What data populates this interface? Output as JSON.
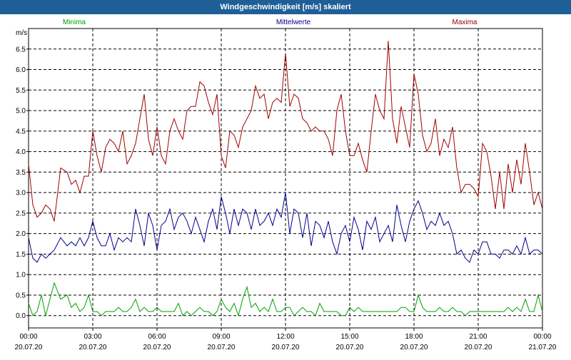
{
  "window": {
    "title": "Windgeschwindigkeit [m/s] skaliert"
  },
  "chart_data": {
    "type": "line",
    "title": "Windgeschwindigkeit [m/s] skaliert",
    "ylabel": "m/s",
    "xlabel": "",
    "ylim": [
      -0.3,
      7.0
    ],
    "xlim": [
      "2020-07-20 00:00",
      "2020-07-21 00:00"
    ],
    "grid": true,
    "yticks": [
      "0.0",
      "0.5",
      "1.0",
      "1.5",
      "2.0",
      "2.5",
      "3.0",
      "3.5",
      "4.0",
      "4.5",
      "5.0",
      "5.5",
      "6.0",
      "6.5"
    ],
    "ytick_values": [
      0,
      0.5,
      1.0,
      1.5,
      2.0,
      2.5,
      3.0,
      3.5,
      4.0,
      4.5,
      5.0,
      5.5,
      6.0,
      6.5
    ],
    "xticks": [
      {
        "time": "00:00",
        "date": "20.07.20",
        "hour": 0
      },
      {
        "time": "03:00",
        "date": "20.07.20",
        "hour": 3
      },
      {
        "time": "06:00",
        "date": "20.07.20",
        "hour": 6
      },
      {
        "time": "09:00",
        "date": "20.07.20",
        "hour": 9
      },
      {
        "time": "12:00",
        "date": "20.07.20",
        "hour": 12
      },
      {
        "time": "15:00",
        "date": "20.07.20",
        "hour": 15
      },
      {
        "time": "18:00",
        "date": "20.07.20",
        "hour": 18
      },
      {
        "time": "21:00",
        "date": "20.07.20",
        "hour": 21
      },
      {
        "time": "00:00",
        "date": "21.07.20",
        "hour": 24
      }
    ],
    "series": [
      {
        "name": "Maxima",
        "color": "#a00000",
        "hours": [
          0.0,
          0.2,
          0.4,
          0.6,
          0.8,
          1.0,
          1.2,
          1.5,
          1.8,
          2.0,
          2.2,
          2.4,
          2.6,
          2.8,
          3.0,
          3.2,
          3.4,
          3.6,
          3.8,
          4.0,
          4.2,
          4.4,
          4.6,
          4.8,
          5.0,
          5.2,
          5.4,
          5.6,
          5.8,
          6.0,
          6.2,
          6.4,
          6.6,
          6.8,
          7.0,
          7.2,
          7.4,
          7.6,
          7.8,
          8.0,
          8.2,
          8.4,
          8.6,
          8.8,
          9.0,
          9.2,
          9.4,
          9.6,
          9.8,
          10.0,
          10.2,
          10.4,
          10.6,
          10.8,
          11.0,
          11.2,
          11.4,
          11.6,
          11.8,
          12.0,
          12.2,
          12.4,
          12.6,
          12.8,
          13.0,
          13.2,
          13.4,
          13.6,
          13.8,
          14.0,
          14.2,
          14.4,
          14.6,
          14.8,
          15.0,
          15.2,
          15.4,
          15.6,
          15.8,
          16.0,
          16.2,
          16.4,
          16.6,
          16.8,
          17.0,
          17.2,
          17.4,
          17.6,
          17.8,
          18.0,
          18.2,
          18.4,
          18.6,
          18.8,
          19.0,
          19.2,
          19.4,
          19.6,
          19.8,
          20.0,
          20.2,
          20.4,
          20.6,
          20.8,
          21.0,
          21.2,
          21.4,
          21.6,
          21.8,
          22.0,
          22.2,
          22.4,
          22.6,
          22.8,
          23.0,
          23.2,
          23.4,
          23.6,
          23.8,
          24.0
        ],
        "values": [
          3.7,
          2.7,
          2.4,
          2.5,
          2.7,
          2.6,
          2.3,
          3.6,
          3.5,
          3.2,
          3.3,
          3.0,
          3.4,
          3.4,
          4.5,
          3.9,
          3.5,
          4.1,
          4.3,
          4.2,
          4.0,
          4.5,
          3.7,
          3.9,
          4.2,
          4.8,
          5.4,
          4.3,
          3.9,
          4.6,
          3.9,
          3.7,
          4.5,
          4.8,
          4.5,
          4.3,
          5.0,
          5.1,
          5.1,
          5.7,
          5.6,
          5.2,
          4.9,
          5.4,
          3.9,
          3.6,
          4.5,
          4.4,
          4.1,
          4.6,
          4.8,
          5.0,
          5.6,
          5.3,
          5.4,
          4.8,
          5.2,
          5.3,
          5.2,
          6.4,
          5.1,
          5.4,
          5.3,
          4.8,
          4.7,
          4.5,
          4.6,
          4.5,
          4.5,
          4.3,
          3.9,
          5.0,
          5.4,
          4.5,
          3.9,
          3.9,
          4.2,
          3.8,
          3.5,
          4.5,
          5.4,
          5.0,
          4.8,
          6.7,
          4.8,
          4.2,
          5.1,
          4.6,
          4.1,
          5.9,
          5.4,
          4.4,
          4.0,
          4.2,
          4.8,
          3.9,
          4.3,
          4.1,
          4.6,
          3.6,
          3.0,
          3.2,
          3.2,
          3.1,
          2.9,
          4.2,
          4.0,
          3.4,
          2.6,
          3.5,
          2.6,
          3.7,
          3.0,
          3.8,
          3.2,
          4.2,
          3.5,
          2.7,
          3.0,
          2.6
        ]
      },
      {
        "name": "Mittelwerte",
        "color": "#00008b",
        "hours": [
          0.0,
          0.2,
          0.4,
          0.6,
          0.8,
          1.0,
          1.2,
          1.5,
          1.8,
          2.0,
          2.2,
          2.4,
          2.6,
          2.8,
          3.0,
          3.2,
          3.4,
          3.6,
          3.8,
          4.0,
          4.2,
          4.4,
          4.6,
          4.8,
          5.0,
          5.2,
          5.4,
          5.6,
          5.8,
          6.0,
          6.2,
          6.4,
          6.6,
          6.8,
          7.0,
          7.2,
          7.4,
          7.6,
          7.8,
          8.0,
          8.2,
          8.4,
          8.6,
          8.8,
          9.0,
          9.2,
          9.4,
          9.6,
          9.8,
          10.0,
          10.2,
          10.4,
          10.6,
          10.8,
          11.0,
          11.2,
          11.4,
          11.6,
          11.8,
          12.0,
          12.2,
          12.4,
          12.6,
          12.8,
          13.0,
          13.2,
          13.4,
          13.6,
          13.8,
          14.0,
          14.2,
          14.4,
          14.6,
          14.8,
          15.0,
          15.2,
          15.4,
          15.6,
          15.8,
          16.0,
          16.2,
          16.4,
          16.6,
          16.8,
          17.0,
          17.2,
          17.4,
          17.6,
          17.8,
          18.0,
          18.2,
          18.4,
          18.6,
          18.8,
          19.0,
          19.2,
          19.4,
          19.6,
          19.8,
          20.0,
          20.2,
          20.4,
          20.6,
          20.8,
          21.0,
          21.2,
          21.4,
          21.6,
          21.8,
          22.0,
          22.2,
          22.4,
          22.6,
          22.8,
          23.0,
          23.2,
          23.4,
          23.6,
          23.8,
          24.0
        ],
        "values": [
          1.9,
          1.4,
          1.3,
          1.5,
          1.4,
          1.5,
          1.6,
          1.9,
          1.7,
          1.8,
          1.7,
          1.9,
          1.7,
          1.9,
          2.3,
          1.9,
          1.7,
          1.7,
          2.0,
          1.6,
          1.9,
          1.8,
          1.9,
          1.8,
          2.6,
          2.2,
          1.7,
          2.5,
          2.2,
          1.6,
          2.2,
          2.3,
          2.6,
          2.1,
          2.4,
          2.5,
          2.3,
          2.0,
          2.4,
          2.1,
          1.8,
          2.3,
          2.6,
          2.1,
          2.9,
          2.5,
          2.0,
          2.6,
          2.2,
          2.6,
          2.5,
          2.1,
          2.6,
          2.2,
          2.3,
          2.5,
          2.2,
          2.6,
          2.4,
          3.0,
          2.0,
          2.6,
          2.5,
          1.9,
          2.5,
          1.7,
          2.3,
          2.2,
          1.9,
          2.3,
          1.8,
          1.5,
          2.0,
          2.2,
          1.8,
          2.4,
          2.1,
          1.6,
          2.3,
          2.1,
          2.4,
          1.8,
          2.0,
          2.2,
          1.8,
          2.7,
          2.2,
          1.8,
          2.3,
          2.6,
          2.8,
          2.5,
          2.1,
          2.3,
          2.2,
          2.5,
          2.2,
          2.3,
          2.0,
          1.5,
          1.6,
          1.4,
          1.3,
          1.6,
          1.5,
          1.8,
          1.8,
          1.5,
          1.5,
          1.4,
          1.6,
          1.6,
          1.5,
          1.7,
          1.5,
          1.9,
          1.5,
          1.6,
          1.6,
          1.5
        ]
      },
      {
        "name": "Minima",
        "color": "#00a000",
        "hours": [
          0.0,
          0.2,
          0.4,
          0.6,
          0.8,
          1.0,
          1.2,
          1.5,
          1.8,
          2.0,
          2.2,
          2.4,
          2.6,
          2.8,
          3.0,
          3.2,
          3.4,
          3.6,
          3.8,
          4.0,
          4.2,
          4.4,
          4.6,
          4.8,
          5.0,
          5.2,
          5.4,
          5.6,
          5.8,
          6.0,
          6.2,
          6.4,
          6.6,
          6.8,
          7.0,
          7.2,
          7.4,
          7.6,
          7.8,
          8.0,
          8.2,
          8.4,
          8.6,
          8.8,
          9.0,
          9.2,
          9.4,
          9.6,
          9.8,
          10.0,
          10.2,
          10.4,
          10.6,
          10.8,
          11.0,
          11.2,
          11.4,
          11.6,
          11.8,
          12.0,
          12.2,
          12.4,
          12.6,
          12.8,
          13.0,
          13.2,
          13.4,
          13.6,
          13.8,
          14.0,
          14.2,
          14.4,
          14.6,
          14.8,
          15.0,
          15.2,
          15.4,
          15.6,
          15.8,
          16.0,
          16.2,
          16.4,
          16.6,
          16.8,
          17.0,
          17.2,
          17.4,
          17.6,
          17.8,
          18.0,
          18.2,
          18.4,
          18.6,
          18.8,
          19.0,
          19.2,
          19.4,
          19.6,
          19.8,
          20.0,
          20.2,
          20.4,
          20.6,
          20.8,
          21.0,
          21.2,
          21.4,
          21.6,
          21.8,
          22.0,
          22.2,
          22.4,
          22.6,
          22.8,
          23.0,
          23.2,
          23.4,
          23.6,
          23.8,
          24.0
        ],
        "values": [
          0.3,
          0.0,
          0.1,
          0.5,
          0.0,
          0.4,
          0.8,
          0.4,
          0.5,
          0.2,
          0.3,
          0.1,
          0.2,
          0.5,
          0.1,
          0.1,
          0.0,
          0.1,
          0.1,
          0.1,
          0.2,
          0.1,
          0.1,
          0.2,
          0.4,
          0.1,
          0.2,
          0.1,
          0.1,
          0.2,
          0.1,
          0.1,
          0.1,
          0.1,
          0.3,
          0.0,
          0.1,
          0.0,
          0.1,
          0.2,
          0.1,
          0.1,
          0.0,
          0.1,
          0.4,
          0.2,
          0.1,
          0.3,
          0.0,
          0.4,
          0.7,
          0.2,
          0.3,
          0.1,
          0.2,
          0.1,
          0.4,
          0.1,
          0.1,
          0.2,
          0.2,
          0.0,
          0.1,
          0.2,
          0.1,
          0.1,
          0.0,
          0.3,
          0.1,
          0.1,
          0.1,
          0.1,
          0.0,
          0.0,
          0.2,
          0.1,
          0.2,
          0.1,
          0.1,
          0.1,
          0.1,
          0.1,
          0.1,
          0.1,
          0.1,
          0.1,
          0.2,
          0.2,
          0.1,
          0.1,
          0.5,
          0.2,
          0.1,
          0.1,
          0.1,
          0.2,
          0.1,
          0.1,
          0.2,
          0.1,
          0.1,
          0.0,
          0.1,
          0.1,
          0.1,
          0.1,
          0.1,
          0.1,
          0.1,
          0.1,
          0.1,
          0.2,
          0.1,
          0.2,
          0.1,
          0.4,
          0.1,
          0.1,
          0.5,
          0.1
        ]
      }
    ]
  }
}
